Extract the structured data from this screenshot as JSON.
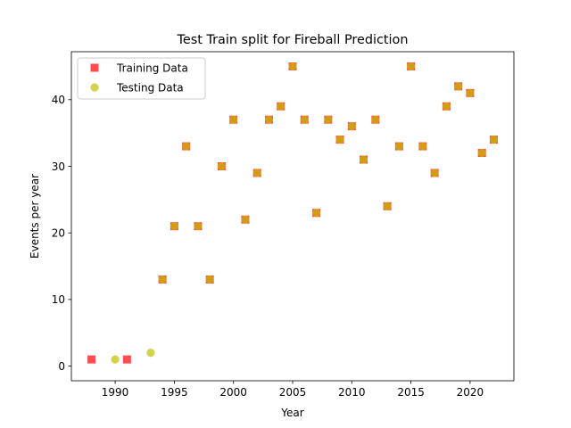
{
  "chart_data": {
    "type": "scatter",
    "title": "Test Train split for Fireball Prediction",
    "xlabel": "Year",
    "ylabel": "Events per year",
    "xlim": [
      1986.3,
      2023.7
    ],
    "ylim": [
      -2.2,
      47.2
    ],
    "xticks": [
      1990,
      1995,
      2000,
      2005,
      2010,
      2015,
      2020
    ],
    "yticks": [
      0,
      10,
      20,
      30,
      40
    ],
    "grid": false,
    "legend_position": "top-left",
    "series": [
      {
        "name": "Training Data",
        "marker": "square",
        "color": "#ff0000",
        "x": [
          1988,
          1991,
          1994,
          1995,
          1996,
          1997,
          1998,
          1999,
          2000,
          2001,
          2002,
          2003,
          2004,
          2005,
          2006,
          2007,
          2008,
          2009,
          2010,
          2011,
          2012,
          2013,
          2014,
          2015,
          2016,
          2017,
          2018,
          2019,
          2020,
          2021,
          2022
        ],
        "y": [
          1,
          1,
          13,
          21,
          33,
          21,
          13,
          30,
          37,
          22,
          29,
          37,
          39,
          45,
          37,
          23,
          37,
          34,
          36,
          31,
          37,
          24,
          33,
          45,
          33,
          29,
          39,
          42,
          41,
          32,
          34
        ]
      },
      {
        "name": "Testing Data",
        "marker": "circle",
        "color": "#bfbf00",
        "x": [
          1990,
          1993,
          1994,
          1995,
          1996,
          1997,
          1998,
          1999,
          2000,
          2001,
          2002,
          2003,
          2004,
          2005,
          2006,
          2007,
          2008,
          2009,
          2010,
          2011,
          2012,
          2013,
          2014,
          2015,
          2016,
          2017,
          2018,
          2019,
          2020,
          2021,
          2022
        ],
        "y": [
          1,
          2,
          13,
          21,
          33,
          21,
          13,
          30,
          37,
          22,
          29,
          37,
          39,
          45,
          37,
          23,
          37,
          34,
          36,
          31,
          37,
          24,
          33,
          45,
          33,
          29,
          39,
          42,
          41,
          32,
          34
        ]
      }
    ]
  }
}
